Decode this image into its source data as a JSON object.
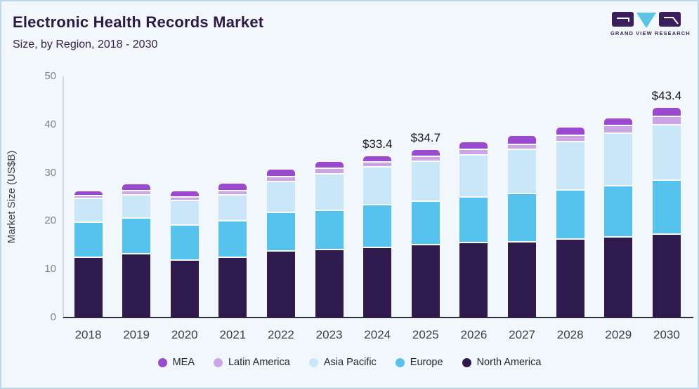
{
  "logo": {
    "text": "GRAND VIEW RESEARCH"
  },
  "theme": {
    "page_background": "#f2f7fb",
    "page_border": "#bdd8ec",
    "title_color": "#2d1a47"
  },
  "chart_data": {
    "type": "bar",
    "stacked": true,
    "title": "Electronic Health Records Market",
    "subtitle": "Size, by Region, 2018 - 2030",
    "ylabel": "Market Size (US$B)",
    "xlabel": "",
    "ylim": [
      0,
      50
    ],
    "yticks": [
      0,
      10,
      20,
      30,
      40,
      50
    ],
    "grid": false,
    "legend_position": "bottom",
    "categories": [
      "2018",
      "2019",
      "2020",
      "2021",
      "2022",
      "2023",
      "2024",
      "2025",
      "2026",
      "2027",
      "2028",
      "2029",
      "2030"
    ],
    "series": [
      {
        "name": "North America",
        "color": "#2f1a4e",
        "values": [
          12.6,
          13.3,
          12.1,
          12.7,
          14.0,
          14.2,
          14.7,
          15.2,
          15.7,
          15.9,
          16.4,
          16.9,
          17.4
        ]
      },
      {
        "name": "Europe",
        "color": "#55c3ee",
        "values": [
          7.3,
          7.5,
          7.3,
          7.5,
          8.0,
          8.2,
          8.8,
          9.1,
          9.4,
          9.9,
          10.2,
          10.6,
          11.2
        ]
      },
      {
        "name": "Asia Pacific",
        "color": "#c9e7f8",
        "values": [
          4.9,
          4.8,
          5.0,
          5.4,
          6.4,
          7.6,
          7.9,
          8.3,
          8.8,
          9.2,
          10.0,
          10.8,
          11.5
        ]
      },
      {
        "name": "Latin America",
        "color": "#cda4e6",
        "values": [
          0.7,
          0.9,
          0.8,
          0.9,
          1.0,
          1.1,
          1.0,
          1.0,
          1.1,
          1.1,
          1.3,
          1.6,
          1.7
        ]
      },
      {
        "name": "MEA",
        "color": "#9b49ce",
        "values": [
          0.7,
          1.1,
          0.9,
          1.2,
          1.2,
          1.1,
          1.0,
          1.1,
          1.3,
          1.5,
          1.5,
          1.4,
          1.6
        ]
      }
    ],
    "totals": [
      26.2,
      27.6,
      26.1,
      27.7,
      30.6,
      32.2,
      33.4,
      34.7,
      36.3,
      37.6,
      39.4,
      41.3,
      43.4
    ],
    "annotations": [
      {
        "category": "2024",
        "label": "$33.4"
      },
      {
        "category": "2025",
        "label": "$34.7"
      },
      {
        "category": "2030",
        "label": "$43.4"
      }
    ],
    "legend_order": [
      "MEA",
      "Latin America",
      "Asia Pacific",
      "Europe",
      "North America"
    ]
  }
}
